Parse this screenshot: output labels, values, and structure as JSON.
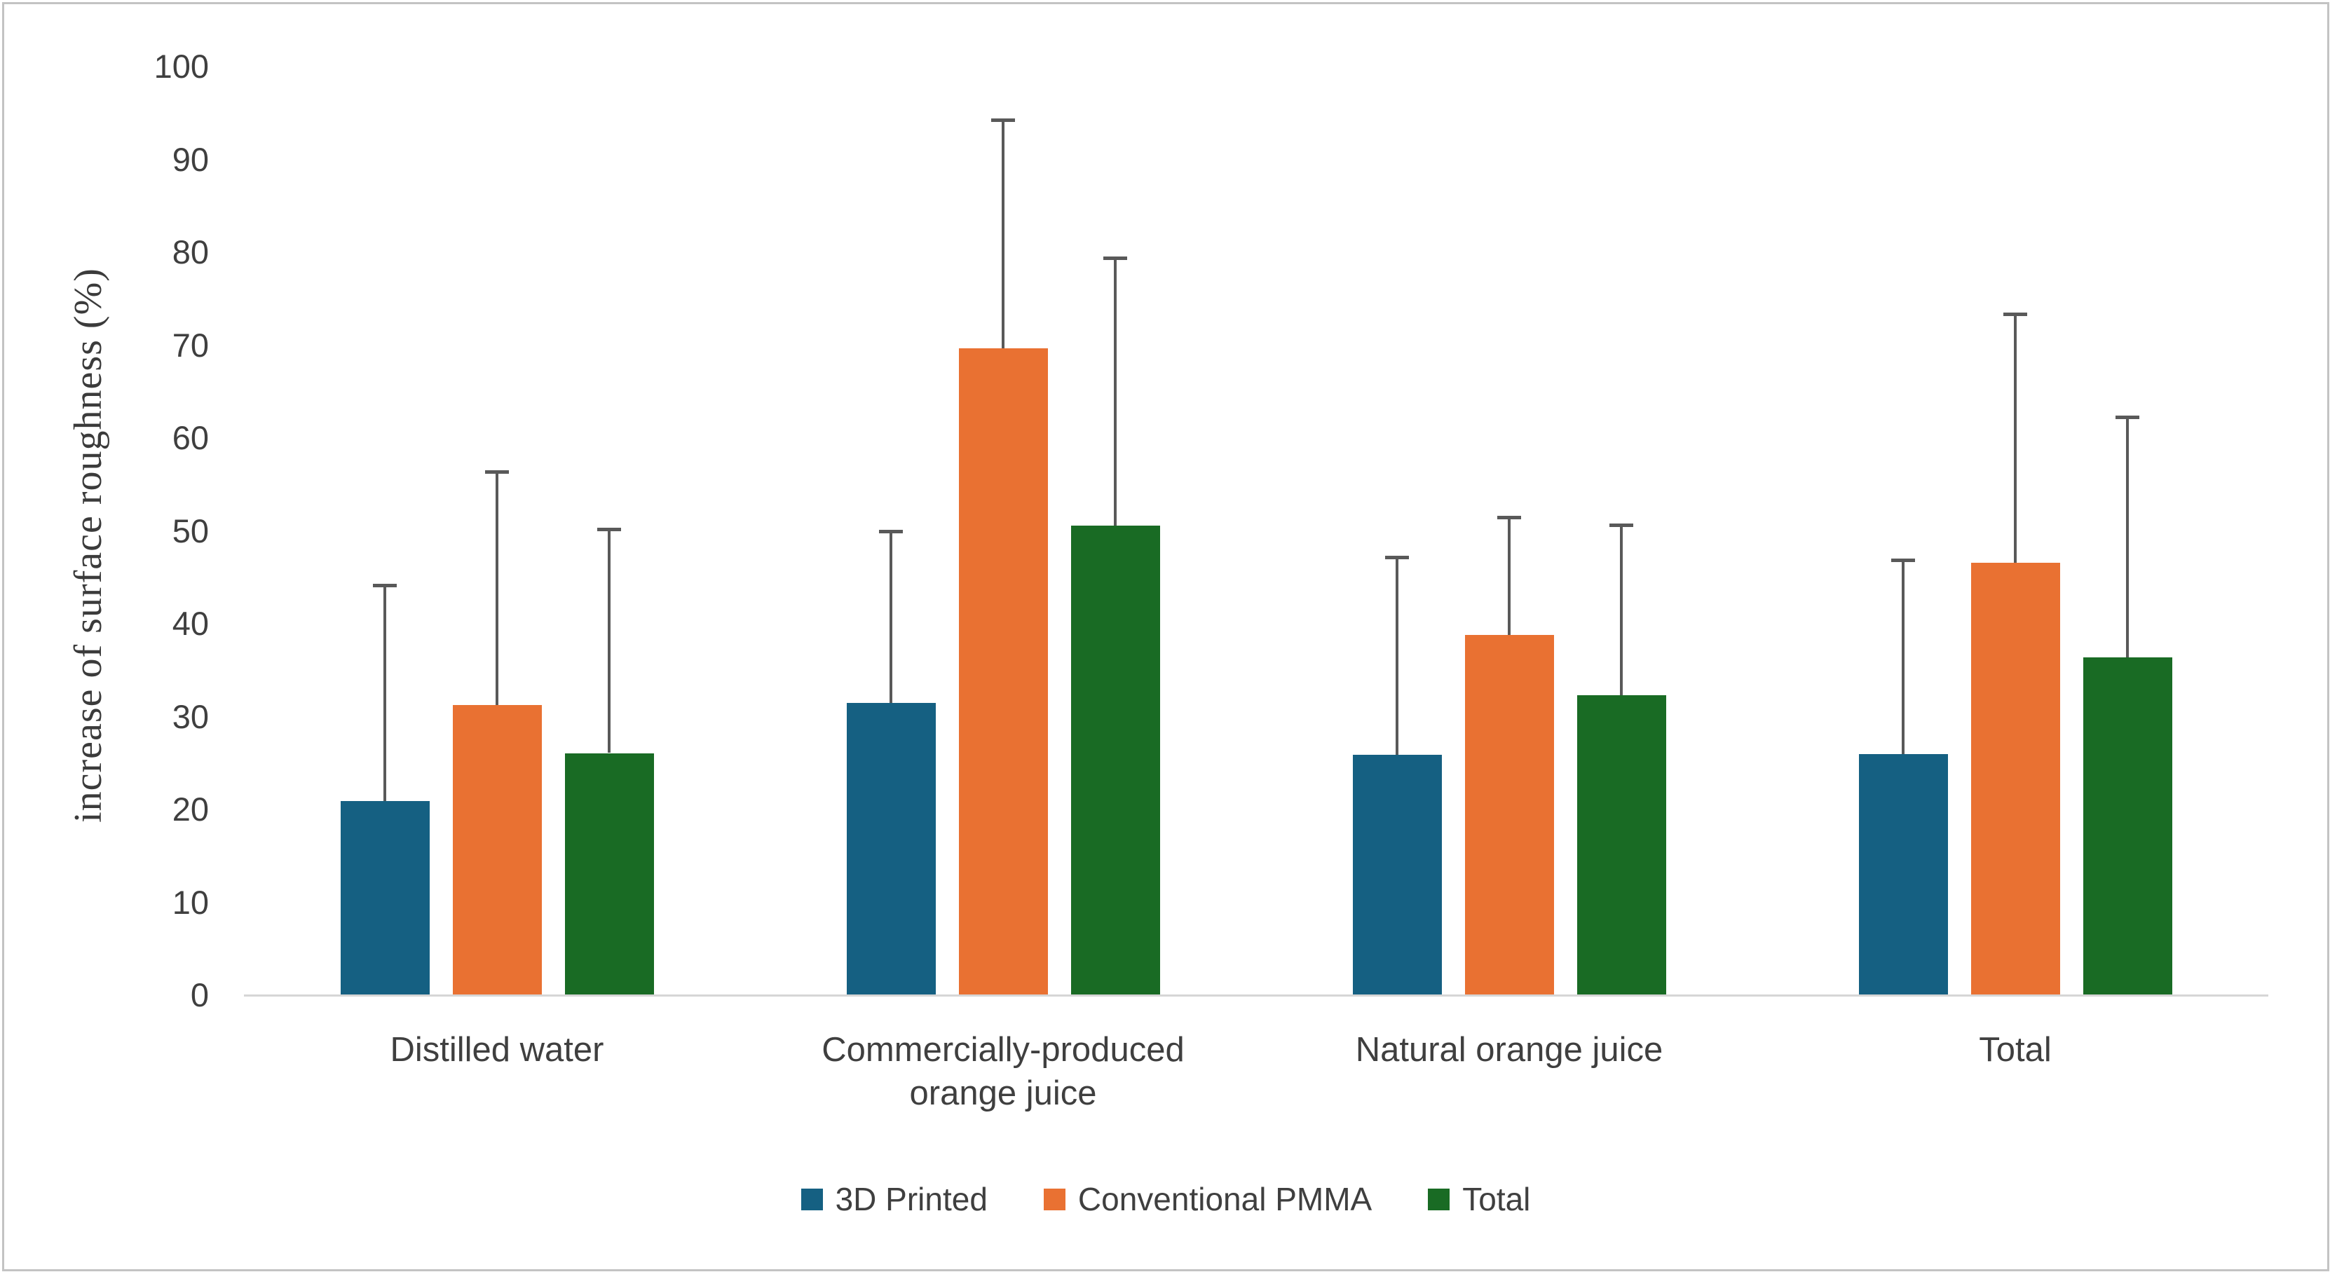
{
  "figure": {
    "type_label": "grouped bar chart with error bars",
    "background": "#ffffff",
    "border_color": "#c3c3c3"
  },
  "chart_data": {
    "type": "bar",
    "title": "",
    "xlabel": "",
    "ylabel": "increase of surface roughness (%)",
    "ylim": [
      0,
      100
    ],
    "yticks": [
      0,
      10,
      20,
      30,
      40,
      50,
      60,
      70,
      80,
      90,
      100
    ],
    "grid": false,
    "legend_position": "bottom",
    "error_bars": "upper only",
    "categories": [
      "Distilled water",
      "Commercially-produced\norange juice",
      "Natural orange juice",
      "Total"
    ],
    "series": [
      {
        "name": "3D Printed",
        "color": "#156082",
        "values": [
          20.8,
          31.4,
          25.8,
          25.9
        ],
        "errors": [
          23.3,
          18.5,
          21.3,
          20.9
        ]
      },
      {
        "name": "Conventional PMMA",
        "color": "#E97132",
        "values": [
          31.2,
          69.6,
          38.7,
          46.5
        ],
        "errors": [
          25.1,
          24.6,
          12.7,
          26.8
        ]
      },
      {
        "name": "Total",
        "color": "#196B24",
        "values": [
          26.0,
          50.5,
          32.2,
          36.3
        ],
        "errors": [
          24.1,
          28.8,
          18.4,
          25.9
        ]
      }
    ],
    "error_bar_color": "#595959",
    "axis_line_color": "#d6d6d6"
  }
}
